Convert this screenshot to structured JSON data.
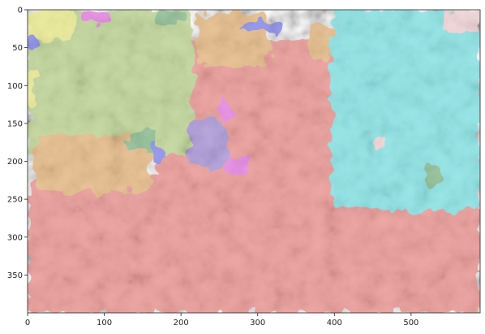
{
  "chart_data": {
    "type": "heatmap",
    "title": "",
    "xlabel": "",
    "ylabel": "",
    "xlim": [
      0,
      590
    ],
    "ylim": [
      400,
      0
    ],
    "x_ticks": [
      0,
      100,
      200,
      300,
      400,
      500
    ],
    "y_ticks": [
      0,
      50,
      100,
      150,
      200,
      250,
      300,
      350
    ],
    "grid": false,
    "legend": "none",
    "background": "grayscale micrograph",
    "segment_colors": {
      "salmon": "#e8908c",
      "cyan": "#7fe0e2",
      "sage": "#b9d18e",
      "tan": "#e3b47c",
      "violet": "#a38fd3",
      "magenta": "#e47ae0",
      "green": "#84b88a",
      "yellow": "#e9ea8a",
      "pink": "#f0d0d4",
      "blue": "#7f82e6"
    },
    "regions": [
      {
        "label": "salmon",
        "x0": 170,
        "x1": 430,
        "y0": 40,
        "y1": 230
      },
      {
        "label": "salmon",
        "x0": 0,
        "x1": 590,
        "y0": 220,
        "y1": 400
      },
      {
        "label": "cyan",
        "x0": 395,
        "x1": 590,
        "y0": 0,
        "y1": 265
      },
      {
        "label": "sage",
        "x0": 0,
        "x1": 215,
        "y0": 0,
        "y1": 190
      },
      {
        "label": "tan",
        "x0": 10,
        "x1": 160,
        "y0": 165,
        "y1": 240
      },
      {
        "label": "tan",
        "x0": 220,
        "x1": 315,
        "y0": 5,
        "y1": 75
      },
      {
        "label": "tan",
        "x0": 365,
        "x1": 395,
        "y0": 20,
        "y1": 65
      },
      {
        "label": "violet",
        "x0": 210,
        "x1": 260,
        "y0": 145,
        "y1": 210
      },
      {
        "label": "magenta",
        "x0": 70,
        "x1": 108,
        "y0": 0,
        "y1": 20
      },
      {
        "label": "magenta",
        "x0": 260,
        "x1": 288,
        "y0": 190,
        "y1": 218
      },
      {
        "label": "magenta",
        "x0": 250,
        "x1": 265,
        "y0": 120,
        "y1": 145
      },
      {
        "label": "green",
        "x0": 165,
        "x1": 205,
        "y0": 0,
        "y1": 20
      },
      {
        "label": "green",
        "x0": 130,
        "x1": 170,
        "y0": 160,
        "y1": 185
      },
      {
        "label": "green",
        "x0": 520,
        "x1": 540,
        "y0": 205,
        "y1": 235
      },
      {
        "label": "yellow",
        "x0": 0,
        "x1": 60,
        "y0": 0,
        "y1": 40
      },
      {
        "label": "yellow",
        "x0": 0,
        "x1": 12,
        "y0": 80,
        "y1": 130
      },
      {
        "label": "pink",
        "x0": 540,
        "x1": 590,
        "y0": 0,
        "y1": 30
      },
      {
        "label": "pink",
        "x0": 450,
        "x1": 470,
        "y0": 165,
        "y1": 185
      },
      {
        "label": "blue",
        "x0": 280,
        "x1": 330,
        "y0": 15,
        "y1": 30
      },
      {
        "label": "blue",
        "x0": 0,
        "x1": 15,
        "y0": 35,
        "y1": 55
      },
      {
        "label": "blue",
        "x0": 160,
        "x1": 175,
        "y0": 175,
        "y1": 205
      }
    ]
  }
}
